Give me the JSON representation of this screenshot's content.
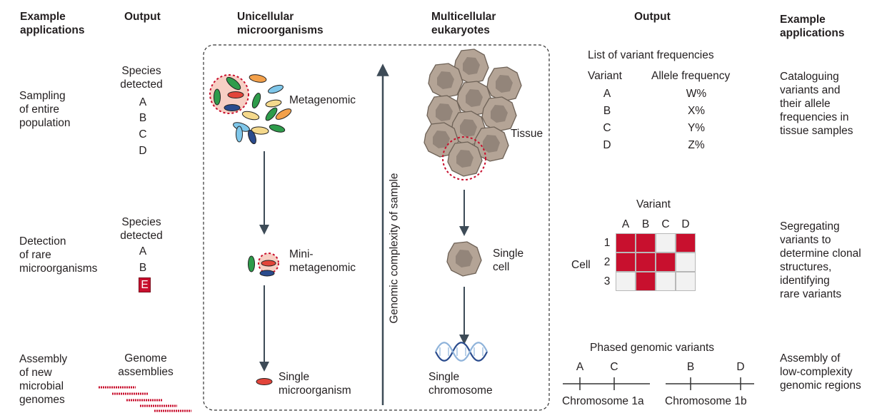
{
  "headers": {
    "example_left": "Example\napplications",
    "output_left": "Output",
    "unicellular": "Unicellular\nmicroorganisms",
    "multicellular": "Multicellular\neukaryotes",
    "output_right": "Output",
    "example_right": "Example\napplications"
  },
  "left_applications": [
    "Sampling\nof entire\npopulation",
    "Detection\nof rare\nmicroorganisms",
    "Assembly\nof new\nmicrobial\ngenomes"
  ],
  "left_outputs": {
    "species_title_1": "Species\ndetected",
    "species_1": [
      "A",
      "B",
      "C",
      "D"
    ],
    "species_title_2": "Species\ndetected",
    "species_2": [
      "A",
      "B"
    ],
    "species_2_rare": "E",
    "genome": "Genome\nassemblies"
  },
  "micro_labels": {
    "metagenomic": "Metagenomic",
    "mini": "Mini-\nmetagenomic",
    "single": "Single\nmicroorganism"
  },
  "axis_label": "Genomic complexity of sample",
  "euk_labels": {
    "tissue": "Tissue",
    "cell": "Single\ncell",
    "chromosome": "Single\nchromosome"
  },
  "variant_list": {
    "title": "List of variant frequencies",
    "col_variant": "Variant",
    "col_freq": "Allele frequency",
    "rows": [
      {
        "variant": "A",
        "freq": "W%"
      },
      {
        "variant": "B",
        "freq": "X%"
      },
      {
        "variant": "C",
        "freq": "Y%"
      },
      {
        "variant": "D",
        "freq": "Z%"
      }
    ]
  },
  "matrix": {
    "title": "Variant",
    "cols": [
      "A",
      "B",
      "C",
      "D"
    ],
    "row_label": "Cell",
    "rows": [
      "1",
      "2",
      "3"
    ],
    "values": [
      [
        1,
        1,
        0,
        1
      ],
      [
        1,
        1,
        1,
        0
      ],
      [
        0,
        1,
        0,
        0
      ]
    ],
    "on_color": "#c8102e",
    "off_color": "#f2f2f2"
  },
  "phased": {
    "title": "Phased genomic variants",
    "chrom_a": "Chromosome 1a",
    "chrom_b": "Chromosome 1b",
    "a_variants": [
      "A",
      "C"
    ],
    "b_variants": [
      "B",
      "D"
    ]
  },
  "right_applications": [
    "Cataloguing\nvariants and\ntheir allele\nfrequencies in\ntissue samples",
    "Segregating\nvariants to\ndetermine clonal\nstructures,\nidentifying\nrare variants",
    "Assembly of\nlow-complexity\ngenomic regions"
  ],
  "colors": {
    "accent_red": "#c8102e",
    "cell_fill": "#b4a496",
    "arrow": "#3d4b57"
  }
}
